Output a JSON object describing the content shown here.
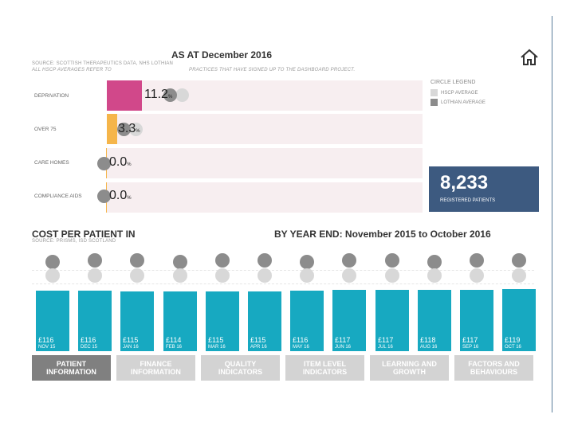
{
  "header": {
    "title": "AS AT December 2016",
    "source_line1": "SOURCE: SCOTTISH THERAPEUTICS DATA, NHS LOTHIAN",
    "source_line2a": "ALL HSCP AVERAGES REFER TO",
    "source_line2b": "PRACTICES THAT HAVE SIGNED UP TO THE DASHBOARD PROJECT."
  },
  "metrics": [
    {
      "label": "DEPRIVATION",
      "value": "11.2",
      "unit": "%",
      "color": "#d1488a",
      "fraction": 0.112
    },
    {
      "label": "OVER 75",
      "value": "3.3",
      "unit": "%",
      "color": "#f5b54a",
      "fraction": 0.033
    },
    {
      "label": "CARE HOMES",
      "value": "0.0",
      "unit": "%",
      "color": "#f5b54a",
      "fraction": 0.0
    },
    {
      "label": "COMPLIANCE AIDS",
      "value": "0.0",
      "unit": "%",
      "color": "#f5b54a",
      "fraction": 0.0
    }
  ],
  "legend": {
    "title": "CIRCLE LEGEND",
    "items": [
      {
        "label": "HSCP AVERAGE",
        "color": "#d8d8d8"
      },
      {
        "label": "LOTHIAN AVERAGE",
        "color": "#8c8c8c"
      }
    ]
  },
  "patients": {
    "count": "8,233",
    "label": "REGISTERED PATIENTS"
  },
  "cost": {
    "title": "COST PER PATIENT IN",
    "year_title": "BY YEAR END: November 2015 to October 2016",
    "source": "SOURCE: PRISMS, ISD SCOTLAND"
  },
  "chart_data": {
    "type": "bar",
    "title": "COST PER PATIENT IN",
    "subtitle": "BY YEAR END: November 2015 to October 2016",
    "categories": [
      "NOV 15",
      "DEC 15",
      "JAN 16",
      "FEB 16",
      "MAR 16",
      "APR 16",
      "MAY 16",
      "JUN 16",
      "JUL 16",
      "AUG 16",
      "SEP 16",
      "OCT 16"
    ],
    "values": [
      116,
      116,
      115,
      114,
      115,
      115,
      116,
      117,
      117,
      118,
      117,
      119
    ],
    "value_labels": [
      "£116",
      "£116",
      "£115",
      "£114",
      "£115",
      "£115",
      "£116",
      "£117",
      "£117",
      "£118",
      "£117",
      "£119"
    ],
    "series": [
      {
        "name": "Cost per patient",
        "values": [
          116,
          116,
          115,
          114,
          115,
          115,
          116,
          117,
          117,
          118,
          117,
          119
        ]
      }
    ],
    "ylim": [
      0,
      119
    ],
    "xlabel": "",
    "ylabel": "",
    "bar_color": "#17a9c1"
  },
  "tabs": [
    {
      "label1": "PATIENT",
      "label2": "INFORMATION",
      "active": true
    },
    {
      "label1": "FINANCE",
      "label2": "INFORMATION",
      "active": false
    },
    {
      "label1": "QUALITY",
      "label2": "INDICATORS",
      "active": false
    },
    {
      "label1": "ITEM LEVEL",
      "label2": "INDICATORS",
      "active": false
    },
    {
      "label1": "LEARNING AND",
      "label2": "GROWTH",
      "active": false
    },
    {
      "label1": "FACTORS AND",
      "label2": "BEHAVIOURS",
      "active": false
    }
  ]
}
